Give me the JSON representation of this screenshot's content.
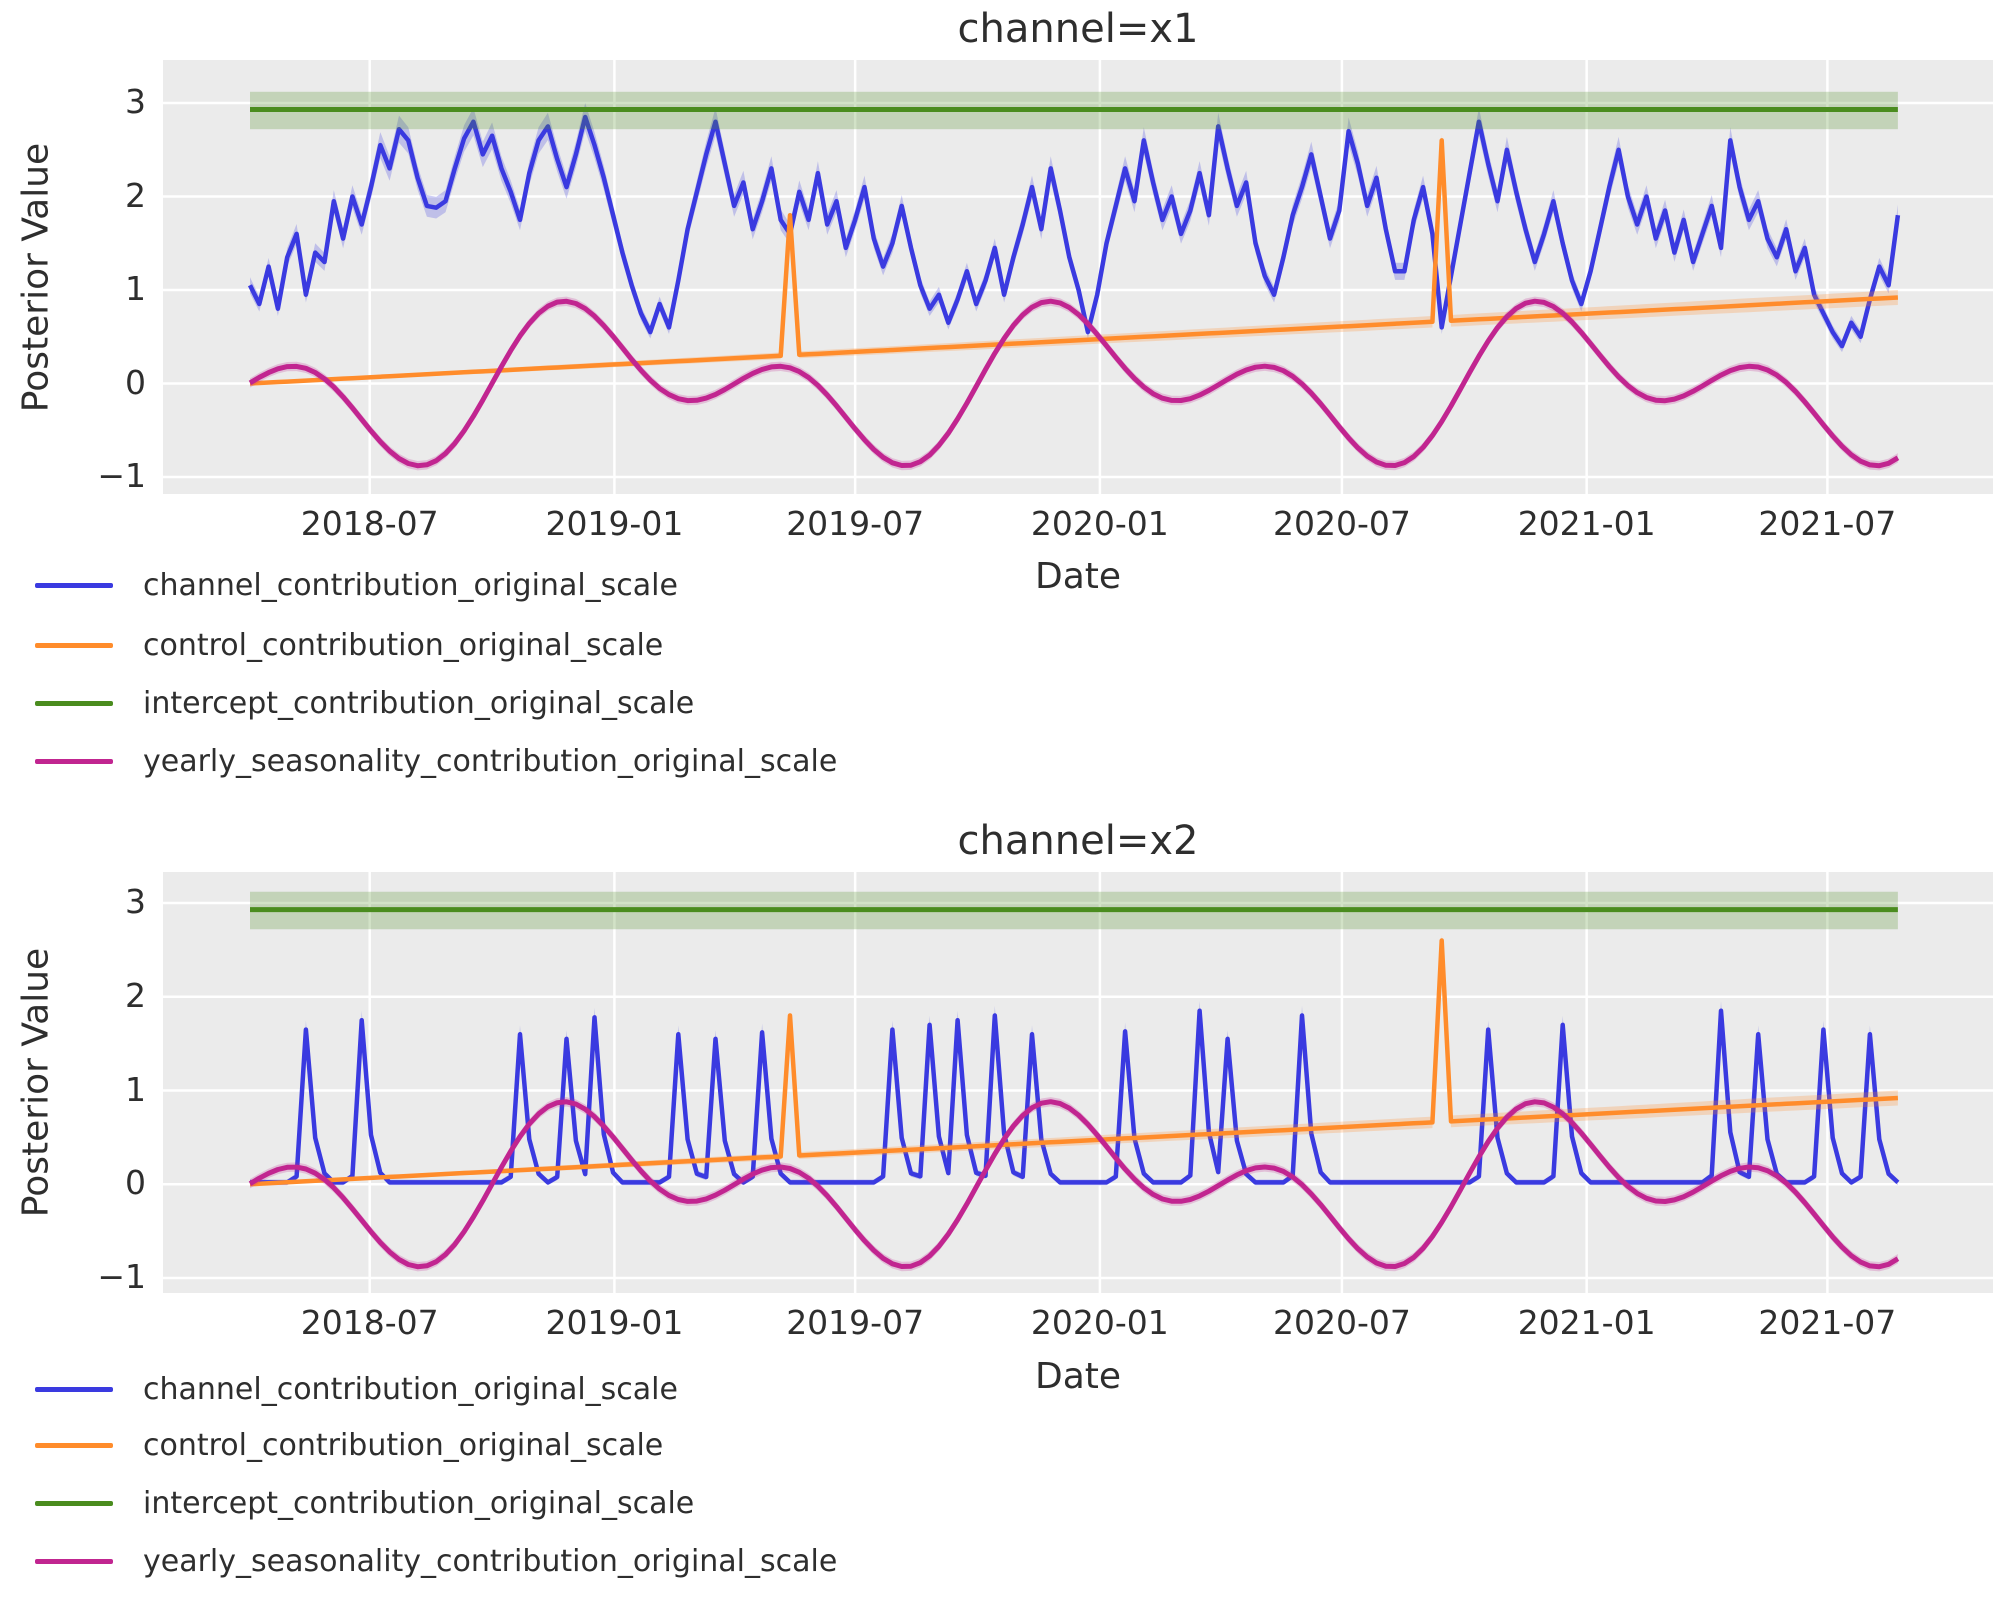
{
  "figure": {
    "background": "#ffffff",
    "plot_background": "#ebebeb",
    "grid_color": "#ffffff",
    "text_color": "#2e2e2e"
  },
  "chart_data": {
    "type": "line",
    "axes": {
      "x_label": "Date",
      "y_label": "Posterior Value",
      "y_ticks": [
        3,
        2,
        1,
        0,
        -1
      ],
      "y_tick_labels": [
        "3",
        "2",
        "1",
        "0",
        "−1"
      ],
      "x_ticks": [
        {
          "label": "2018-07",
          "day": 90
        },
        {
          "label": "2019-01",
          "day": 274
        },
        {
          "label": "2019-07",
          "day": 455
        },
        {
          "label": "2020-01",
          "day": 639
        },
        {
          "label": "2020-07",
          "day": 821
        },
        {
          "label": "2021-01",
          "day": 1005
        },
        {
          "label": "2021-07",
          "day": 1186
        }
      ],
      "ylim_1": [
        -1.18,
        3.46
      ],
      "ylim_2": [
        -1.16,
        3.33
      ],
      "weeks": 178,
      "days_per_week": 7,
      "grid": true
    },
    "legend": [
      {
        "series": "channel",
        "label": "channel_contribution_original_scale",
        "color": "#3a3ae0"
      },
      {
        "series": "control",
        "label": "control_contribution_original_scale",
        "color": "#ff8c2b"
      },
      {
        "series": "intercept",
        "label": "intercept_contribution_original_scale",
        "color": "#4a8c1e"
      },
      {
        "series": "seasonality",
        "label": "yearly_seasonality_contribution_original_scale",
        "color": "#c12590"
      }
    ],
    "shared_series": {
      "intercept": {
        "value": 2.93,
        "band_low": 2.72,
        "band_high": 3.12
      },
      "control": {
        "trend_start": 0.0,
        "trend_end": 0.92,
        "band_base": 0.015,
        "band_end": 0.08,
        "spikes": [
          {
            "week": 58,
            "date_label": "2019-05",
            "value": 1.8
          },
          {
            "week": 128,
            "date_label": "2020-09",
            "value": 2.6
          }
        ]
      },
      "seasonality": {
        "amplitude": 0.5,
        "terms": [
          {
            "order": 1,
            "fn": "cos",
            "coef": 1
          },
          {
            "order": 2,
            "fn": "sin",
            "coef": -1
          }
        ],
        "start_day_of_year": 92,
        "period_days": 365.25,
        "band": 0.05,
        "approx_max": 0.9,
        "approx_min": -0.87
      }
    },
    "charts": [
      {
        "id": "x1",
        "title": "channel=x1",
        "channel": {
          "type": "weekly_values",
          "band_base": 0.05,
          "band_slope": 0.035,
          "values": [
            1.05,
            0.85,
            1.25,
            0.8,
            1.35,
            1.6,
            0.95,
            1.4,
            1.3,
            1.95,
            1.55,
            2.0,
            1.7,
            2.1,
            2.55,
            2.3,
            2.72,
            2.6,
            2.2,
            1.9,
            1.88,
            1.95,
            2.3,
            2.62,
            2.8,
            2.45,
            2.65,
            2.3,
            2.05,
            1.75,
            2.25,
            2.6,
            2.75,
            2.4,
            2.1,
            2.45,
            2.85,
            2.55,
            2.2,
            1.8,
            1.4,
            1.05,
            0.75,
            0.55,
            0.85,
            0.6,
            1.1,
            1.65,
            2.05,
            2.45,
            2.8,
            2.35,
            1.9,
            2.15,
            1.65,
            1.95,
            2.3,
            1.75,
            1.6,
            2.05,
            1.75,
            2.25,
            1.7,
            1.95,
            1.45,
            1.75,
            2.1,
            1.55,
            1.25,
            1.5,
            1.9,
            1.45,
            1.05,
            0.8,
            0.95,
            0.65,
            0.9,
            1.2,
            0.85,
            1.1,
            1.45,
            0.95,
            1.35,
            1.7,
            2.1,
            1.65,
            2.3,
            1.85,
            1.35,
            1.0,
            0.55,
            0.95,
            1.5,
            1.9,
            2.3,
            1.95,
            2.6,
            2.15,
            1.75,
            2.0,
            1.6,
            1.85,
            2.25,
            1.8,
            2.75,
            2.3,
            1.9,
            2.15,
            1.5,
            1.15,
            0.95,
            1.35,
            1.8,
            2.1,
            2.45,
            2.0,
            1.55,
            1.85,
            2.7,
            2.35,
            1.9,
            2.2,
            1.65,
            1.2,
            1.2,
            1.75,
            2.1,
            1.6,
            0.6,
            1.15,
            1.7,
            2.25,
            2.8,
            2.35,
            1.95,
            2.5,
            2.05,
            1.65,
            1.3,
            1.6,
            1.95,
            1.5,
            1.1,
            0.85,
            1.2,
            1.65,
            2.1,
            2.5,
            2.0,
            1.7,
            2.0,
            1.55,
            1.85,
            1.4,
            1.75,
            1.3,
            1.6,
            1.9,
            1.45,
            2.6,
            2.1,
            1.75,
            1.95,
            1.55,
            1.35,
            1.65,
            1.2,
            1.45,
            0.95,
            0.75,
            0.55,
            0.4,
            0.65,
            0.5,
            0.9,
            1.25,
            1.05,
            1.8
          ]
        }
      },
      {
        "id": "x2",
        "title": "channel=x2",
        "channel": {
          "type": "spike_events",
          "baseline": 0.02,
          "band_base": 0.03,
          "band_slope": 0.04,
          "spike_shape": {
            "pre": 0.05,
            "peak": 1.0,
            "post1": 0.3,
            "post2": 0.07
          },
          "spikes": [
            {
              "week": 6,
              "value": 1.65
            },
            {
              "week": 12,
              "value": 1.75
            },
            {
              "week": 29,
              "value": 1.6
            },
            {
              "week": 34,
              "value": 1.55
            },
            {
              "week": 37,
              "value": 1.78
            },
            {
              "week": 46,
              "value": 1.6
            },
            {
              "week": 50,
              "value": 1.55
            },
            {
              "week": 55,
              "value": 1.62
            },
            {
              "week": 69,
              "value": 1.65
            },
            {
              "week": 73,
              "value": 1.7
            },
            {
              "week": 76,
              "value": 1.75
            },
            {
              "week": 80,
              "value": 1.8
            },
            {
              "week": 84,
              "value": 1.6
            },
            {
              "week": 94,
              "value": 1.63
            },
            {
              "week": 102,
              "value": 1.85
            },
            {
              "week": 105,
              "value": 1.55
            },
            {
              "week": 113,
              "value": 1.8
            },
            {
              "week": 133,
              "value": 1.65
            },
            {
              "week": 141,
              "value": 1.7
            },
            {
              "week": 158,
              "value": 1.85
            },
            {
              "week": 162,
              "value": 1.6
            },
            {
              "week": 169,
              "value": 1.65
            },
            {
              "week": 174,
              "value": 1.6
            }
          ]
        }
      }
    ]
  }
}
